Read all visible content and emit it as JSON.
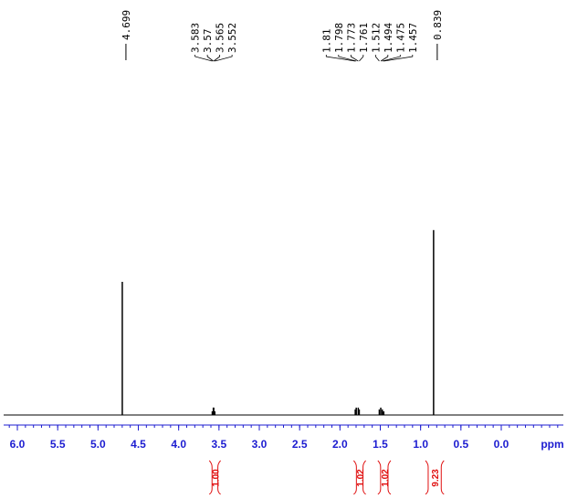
{
  "chart_data": {
    "type": "nmr",
    "x_label": "ppm",
    "xlim": [
      6.17,
      -0.77
    ],
    "xticks": [
      {
        "value": 6,
        "label": "6.0"
      },
      {
        "value": 5.5,
        "label": "5.5"
      },
      {
        "value": 5,
        "label": "5.0"
      },
      {
        "value": 4.5,
        "label": "4.5"
      },
      {
        "value": 4,
        "label": "4.0"
      },
      {
        "value": 3.5,
        "label": "3.5"
      },
      {
        "value": 3,
        "label": "3.0"
      },
      {
        "value": 2.5,
        "label": "2.5"
      },
      {
        "value": 2,
        "label": "2.0"
      },
      {
        "value": 1.5,
        "label": "1.5"
      },
      {
        "value": 1,
        "label": "1.0"
      },
      {
        "value": 0.5,
        "label": "0.5"
      },
      {
        "value": 0,
        "label": "0.0"
      }
    ],
    "ylim": [
      0,
      110
    ],
    "color": "#000000",
    "axis_color": "#1c1cd0",
    "integral_color": "#e01010",
    "peaks": {
      "ppm": [
        4.699,
        3.583,
        3.57,
        3.565,
        3.552,
        1.81,
        1.798,
        1.773,
        1.761,
        1.512,
        1.494,
        1.475,
        1.457,
        0.839
      ],
      "heights": [
        72,
        2,
        4,
        4,
        2,
        3,
        4,
        4,
        3,
        3,
        4,
        3,
        2,
        100
      ]
    },
    "integrals": {
      "ranges": [
        [
          3.62,
          3.48
        ],
        [
          1.83,
          1.68
        ],
        [
          1.53,
          1.37
        ],
        [
          0.94,
          0.71
        ]
      ],
      "values": [
        1,
        1.02,
        1.02,
        9.23
      ],
      "value_labels": [
        "1.00",
        "1.02",
        "1.02",
        "9.23"
      ]
    }
  }
}
